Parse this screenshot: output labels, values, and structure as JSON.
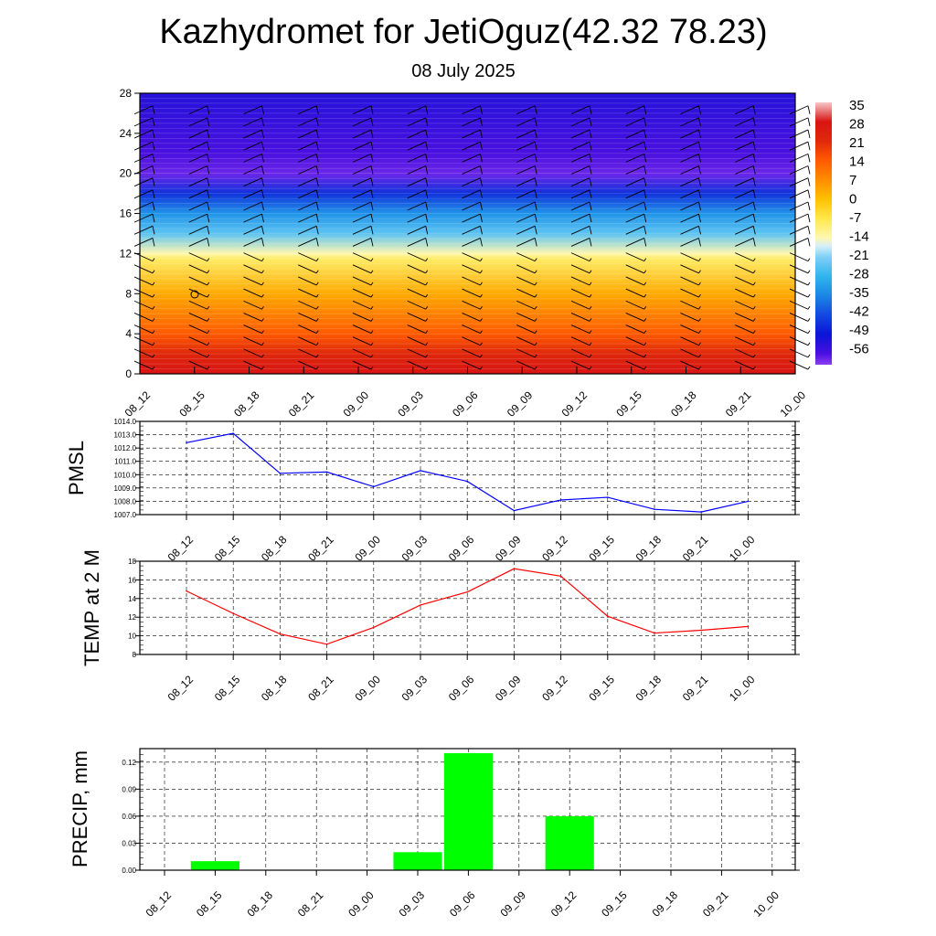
{
  "title": "Kazhydromet for JetiOguz(42.32 78.23)",
  "subtitle": "08 July 2025",
  "time_labels": [
    "08_12",
    "08_15",
    "08_18",
    "08_21",
    "09_00",
    "09_03",
    "09_06",
    "09_09",
    "09_12",
    "09_15",
    "09_18",
    "09_21",
    "10_00"
  ],
  "colors": {
    "pmsl_line": "#0000ff",
    "temp_line": "#ff0000",
    "precip_bar": "#00ff00",
    "grid": "#000000"
  },
  "chart_data": [
    {
      "type": "heatmap",
      "title": "",
      "ylabel": "",
      "y_ticks": [
        0,
        4,
        8,
        12,
        16,
        20,
        24,
        28
      ],
      "ylim": [
        0,
        28
      ],
      "colorbar": {
        "labels": [
          "35",
          "28",
          "21",
          "14",
          "7",
          "0",
          "-7",
          "-14",
          "-21",
          "-28",
          "-35",
          "-42",
          "-49",
          "-56"
        ]
      },
      "temperature_profile": [
        {
          "height": 0,
          "value": 28
        },
        {
          "height": 2,
          "value": 22
        },
        {
          "height": 4,
          "value": 14
        },
        {
          "height": 8,
          "value": 3
        },
        {
          "height": 11.5,
          "value": -9
        },
        {
          "height": 12,
          "value": -14
        },
        {
          "height": 14,
          "value": -24
        },
        {
          "height": 16,
          "value": -33
        },
        {
          "height": 18,
          "value": -45
        },
        {
          "height": 20,
          "value": -58
        },
        {
          "height": 22,
          "value": -56
        },
        {
          "height": 28,
          "value": -52
        }
      ],
      "wind_barbs": "shown"
    },
    {
      "type": "line",
      "ylabel": "PMSL",
      "ylim": [
        1007.0,
        1014.0
      ],
      "y_ticks": [
        "1014.0",
        "1013.0",
        "1012.0",
        "1011.0",
        "1010.0",
        "1009.0",
        "1008.0",
        "1007.0"
      ],
      "categories": [
        "08_12",
        "08_15",
        "08_18",
        "08_21",
        "09_00",
        "09_03",
        "09_06",
        "09_09",
        "09_12",
        "09_15",
        "09_18",
        "09_21",
        "10_00"
      ],
      "values": [
        1012.4,
        1013.1,
        1010.1,
        1010.2,
        1009.1,
        1010.3,
        1009.5,
        1007.3,
        1008.1,
        1008.3,
        1007.4,
        1007.2,
        1008.0
      ],
      "grid": true
    },
    {
      "type": "line",
      "ylabel": "TEMP at 2 M",
      "ylim": [
        8,
        18
      ],
      "y_ticks": [
        "18",
        "16",
        "14",
        "12",
        "10",
        "8"
      ],
      "categories": [
        "08_12",
        "08_15",
        "08_18",
        "08_21",
        "09_00",
        "09_03",
        "09_06",
        "09_09",
        "09_12",
        "09_15",
        "09_18",
        "09_21",
        "10_00"
      ],
      "values": [
        14.8,
        12.4,
        10.2,
        9.1,
        10.9,
        13.3,
        14.7,
        17.2,
        16.4,
        12.1,
        10.3,
        10.6,
        11.0
      ],
      "grid": true
    },
    {
      "type": "bar",
      "ylabel": "PRECIP, mm",
      "ylim": [
        0,
        0.135
      ],
      "y_ticks": [
        "0.12",
        "0.09",
        "0.06",
        "0.03",
        "0.00"
      ],
      "categories": [
        "08_12",
        "08_15",
        "08_18",
        "08_21",
        "09_00",
        "09_03",
        "09_06",
        "09_09",
        "09_12",
        "09_15",
        "09_18",
        "09_21",
        "10_00"
      ],
      "values": [
        0,
        0.01,
        0,
        0,
        0,
        0.02,
        0.13,
        0,
        0.06,
        0,
        0,
        0,
        0
      ],
      "grid": true
    }
  ]
}
